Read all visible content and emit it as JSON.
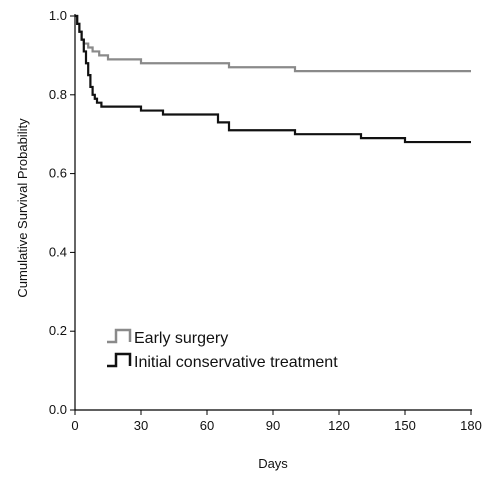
{
  "chart_data": {
    "type": "line",
    "step": true,
    "xlabel": "Days",
    "ylabel": "Cumulative Survival Probability",
    "xlim": [
      0,
      180
    ],
    "ylim": [
      0,
      1.0
    ],
    "x_ticks": [
      "0",
      "30",
      "60",
      "90",
      "120",
      "150",
      "180"
    ],
    "y_ticks": [
      "0.0",
      "0.2",
      "0.4",
      "0.6",
      "0.8",
      "1.0"
    ],
    "grid": false,
    "legend_position": "bottom-left",
    "series": [
      {
        "name": "Early surgery",
        "color": "#8a8a8a",
        "x": [
          0,
          1,
          2,
          3,
          4,
          6,
          8,
          11,
          15,
          30,
          70,
          100,
          180
        ],
        "y": [
          1.0,
          0.98,
          0.96,
          0.94,
          0.93,
          0.92,
          0.91,
          0.9,
          0.89,
          0.88,
          0.87,
          0.86,
          0.86
        ]
      },
      {
        "name": "Initial conservative treatment",
        "color": "#111111",
        "x": [
          0,
          1,
          2,
          3,
          4,
          5,
          6,
          7,
          8,
          9,
          10,
          12,
          30,
          40,
          65,
          70,
          100,
          130,
          150,
          180
        ],
        "y": [
          1.0,
          0.98,
          0.96,
          0.94,
          0.91,
          0.88,
          0.85,
          0.82,
          0.8,
          0.79,
          0.78,
          0.77,
          0.76,
          0.75,
          0.73,
          0.71,
          0.7,
          0.69,
          0.68,
          0.68
        ]
      }
    ]
  }
}
